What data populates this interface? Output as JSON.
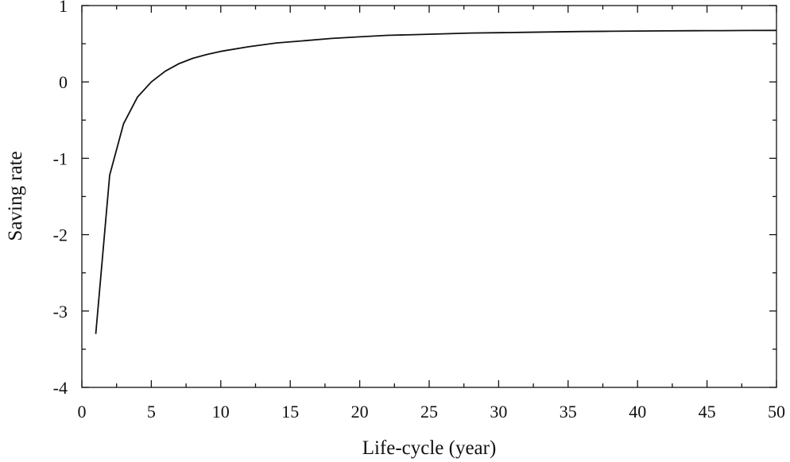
{
  "chart_data": {
    "type": "line",
    "title": "",
    "xlabel": "Life-cycle (year)",
    "ylabel": "Saving rate",
    "xlim": [
      0,
      50
    ],
    "ylim": [
      -4,
      1
    ],
    "x_ticks": [
      0,
      5,
      10,
      15,
      20,
      25,
      30,
      35,
      40,
      45,
      50
    ],
    "x_tick_labels": [
      "0",
      "5",
      "10",
      "15",
      "20",
      "25",
      "30",
      "35",
      "40",
      "45",
      "50"
    ],
    "x_minor_ticks": [
      2.5,
      7.5,
      12.5,
      17.5,
      22.5,
      27.5,
      32.5,
      37.5,
      42.5,
      47.5
    ],
    "y_ticks": [
      -4,
      -3,
      -2,
      -1,
      0,
      1
    ],
    "y_tick_labels": [
      "-4",
      "-3",
      "-2",
      "-1",
      "0",
      "1"
    ],
    "y_minor_ticks": [
      -3.5,
      -2.5,
      -1.5,
      -0.5,
      0.5
    ],
    "grid": false,
    "line_color": "#111111",
    "series": [
      {
        "x": [
          1,
          2,
          3,
          4,
          5,
          6,
          7,
          8,
          9,
          10,
          12,
          14,
          16,
          18,
          20,
          22,
          24,
          26,
          28,
          30,
          32,
          34,
          36,
          38,
          40,
          42,
          44,
          46,
          48,
          50
        ],
        "values": [
          -3.3,
          -1.22,
          -0.55,
          -0.2,
          0.0,
          0.14,
          0.24,
          0.31,
          0.36,
          0.4,
          0.46,
          0.51,
          0.54,
          0.57,
          0.59,
          0.61,
          0.62,
          0.63,
          0.64,
          0.645,
          0.65,
          0.655,
          0.66,
          0.663,
          0.666,
          0.668,
          0.67,
          0.672,
          0.674,
          0.675
        ]
      }
    ]
  }
}
